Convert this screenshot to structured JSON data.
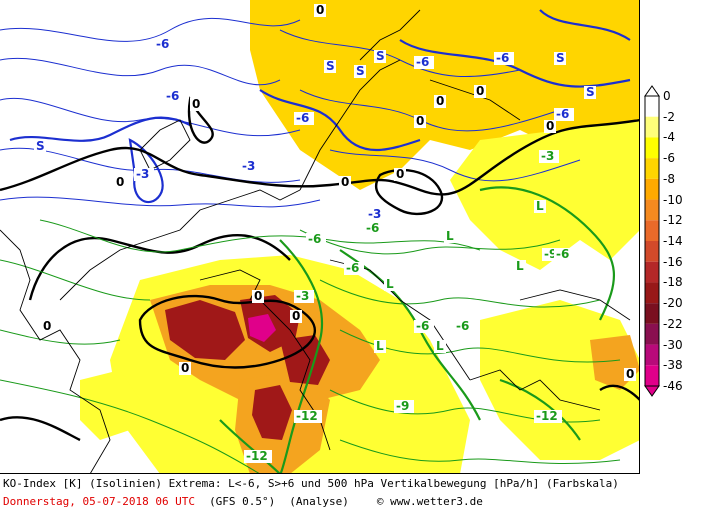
{
  "map": {
    "colors": {
      "land_fill": "#ffffff",
      "coast": "#000000",
      "blue_iso": "#1c2fd0",
      "green_iso": "#1a9a1a",
      "black_iso": "#000000",
      "shade_light": "#ffff33",
      "shade_yellow": "#ffd500",
      "shade_orange": "#f4a41f",
      "shade_dark": "#a01818",
      "shade_magenta": "#e0008a"
    },
    "iso_labels": {
      "blue": [
        "-6",
        "-6",
        "-6",
        "-3",
        "-6",
        "-6",
        "-6",
        "-3",
        "-3",
        "S",
        "S",
        "S",
        "S",
        "S",
        "S"
      ],
      "black": [
        "0",
        "0",
        "0",
        "0",
        "0",
        "0",
        "0",
        "0",
        "0",
        "0",
        "0",
        "0",
        "0",
        "0"
      ],
      "green": [
        "-6",
        "-6",
        "-6",
        "-9",
        "-6",
        "-12",
        "-12",
        "-12",
        "-9",
        "-6",
        "-6",
        "-3",
        "-3",
        "L",
        "L",
        "L",
        "L",
        "L",
        "L"
      ]
    }
  },
  "legend": {
    "labels": [
      "0",
      "-2",
      "-4",
      "-6",
      "-8",
      "-10",
      "-12",
      "-14",
      "-16",
      "-18",
      "-20",
      "-22",
      "-30",
      "-38",
      "-46"
    ],
    "colors": [
      "#ffffff",
      "#ffff7a",
      "#ffff00",
      "#ffd500",
      "#ffaa00",
      "#f58a1f",
      "#ea6a2a",
      "#d24a2a",
      "#b42828",
      "#981818",
      "#7a1020",
      "#8a1050",
      "#b80a7a",
      "#e0008a"
    ]
  },
  "caption": {
    "line1": "KO-Index [K] (Isolinien) Extrema: L<-6, S>+6 und 500 hPa Vertikalbewegung [hPa/h] (Farbskala)",
    "date": "Donnerstag, 05-07-2018  06 UTC",
    "model": "(GFS 0.5°)",
    "run": "(Analyse)",
    "copyright": "© www.wetter3.de"
  }
}
